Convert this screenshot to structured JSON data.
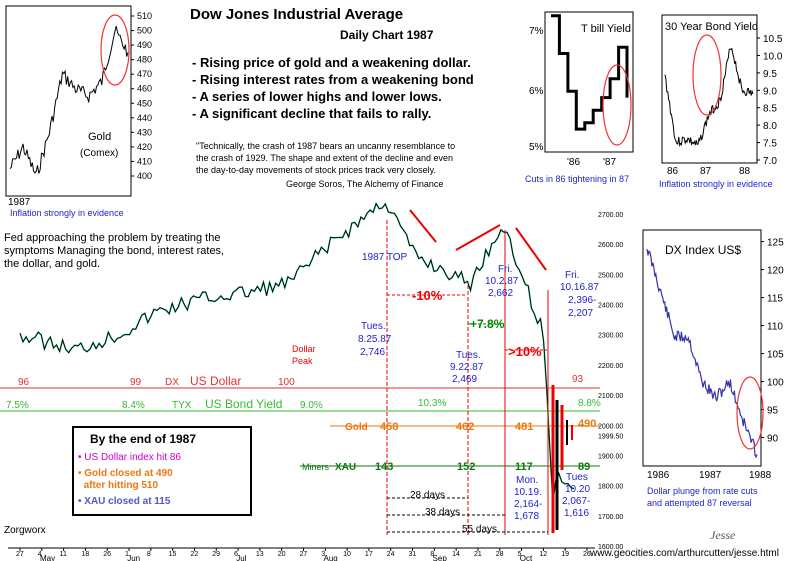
{
  "title": "Dow Jones Industrial Average",
  "subtitle": "Daily Chart  1987",
  "bullets": [
    "- Rising price of gold and a weakening dollar.",
    "- Rising interest rates from a weakening bond",
    "- A series of lower highs and lower lows.",
    "- A significant decline that fails to rally."
  ],
  "quote": [
    "\"Technically, the crash of 1987 bears an uncanny resemblance to",
    "the crash of 1929. The shape and extent of the decline and even",
    "the day-to-day movements of stock prices track very closely.",
    "George Soros, The Alchemy of Finance"
  ],
  "fed_text": [
    "Fed approaching the problem by treating the",
    "symptoms    Managing the bond, interest rates,",
    "the dollar, and gold."
  ],
  "zorgworx": "Zorgworx",
  "website": "www.geocities.com/arthurcutten/jesse.html",
  "signature": "Jesse",
  "summary_box": {
    "title": "By the end of 1987",
    "items": [
      "US Dollar index hit 86",
      "Gold closed at 490 after hitting 510",
      "XAU closed at 115"
    ],
    "item1a": "Gold closed at 490",
    "item1b": "after hitting 510",
    "colors": [
      "#cc00cc",
      "#ee7711",
      "#5555cc"
    ]
  },
  "overlays": {
    "usd": {
      "label_dx": "DX",
      "label": "US Dollar",
      "values": [
        "96",
        "99",
        "100",
        "93"
      ],
      "color": "#dd3333"
    },
    "bond": {
      "label_tyx": "TYX",
      "label": "US Bond Yield",
      "values": [
        "7.5%",
        "8.4%",
        "9.0%",
        "10.3%",
        "8.8%"
      ],
      "color": "#33bb33"
    },
    "gold": {
      "label": "Gold",
      "values": [
        "458",
        "462",
        "481",
        "490"
      ],
      "color": "#ee7711"
    },
    "xau": {
      "label_miners": "Miners",
      "label": "XAU",
      "values": [
        "143",
        "152",
        "117",
        "89"
      ],
      "color": "#117711"
    }
  },
  "annotations": {
    "top_label": "1987 TOP",
    "dollar_peak": [
      "Dollar",
      "Peak"
    ],
    "pct1": "-10%",
    "pct2": "+7.8%",
    "pct3": ">10%",
    "tues1": [
      "Tues.",
      "8.25.87",
      "2,746"
    ],
    "tues2": [
      "Tues.",
      "9.22.87",
      "2,469"
    ],
    "fri1": [
      "Fri.",
      "10.2.87",
      "2,662"
    ],
    "fri2": [
      "Fri.",
      "10.16.87",
      "2,396-",
      "2,207"
    ],
    "mon": [
      "Mon.",
      "10.19.",
      "2,164-",
      "1,678"
    ],
    "tues3": [
      "Tues",
      "10.20",
      "2,067-",
      "1,616"
    ],
    "days": [
      "28 days",
      "38 days",
      "55 days"
    ]
  },
  "main_chart": {
    "y_ticks": [
      "2700.00",
      "2600.00",
      "2500.00",
      "2400.00",
      "2300.00",
      "2200.00",
      "2100.00",
      "2000.00",
      "1999.50",
      "1900.00",
      "1800.00",
      "1700.00",
      "1600.00"
    ],
    "x_days": [
      "27",
      "4",
      "11",
      "18",
      "26",
      "1",
      "8",
      "15",
      "22",
      "29",
      "6",
      "13",
      "20",
      "27",
      "3",
      "10",
      "17",
      "24",
      "31",
      "8",
      "14",
      "21",
      "28",
      "5",
      "12",
      "19",
      "26"
    ],
    "x_months": [
      "May",
      "Jun",
      "Jul",
      "Aug",
      "Sep",
      "Oct"
    ]
  },
  "chart_data": [
    {
      "type": "line",
      "title": "Dow Jones Industrial Average",
      "subtitle": "Daily Chart 1987",
      "x": [
        "1987-04-27",
        "1987-05-15",
        "1987-05-29",
        "1987-06-12",
        "1987-06-26",
        "1987-07-10",
        "1987-07-24",
        "1987-08-07",
        "1987-08-25",
        "1987-09-04",
        "1987-09-22",
        "1987-10-02",
        "1987-10-09",
        "1987-10-16",
        "1987-10-19",
        "1987-10-20",
        "1987-10-26"
      ],
      "series": [
        {
          "values": [
            2300,
            2250,
            2300,
            2380,
            2420,
            2440,
            2470,
            2600,
            2746,
            2560,
            2469,
            2662,
            2500,
            2300,
            1738,
            1840,
            1790
          ]
        }
      ],
      "ylim": [
        1600,
        2700
      ]
    },
    {
      "type": "line",
      "title": "Gold",
      "annotations": [
        "(Comex)",
        "1987",
        "Inflation strongly in evidence"
      ],
      "x": [
        "1986-07",
        "1986-09",
        "1986-11",
        "1987-01",
        "1987-03",
        "1987-05",
        "1987-07",
        "1987-09",
        "1987-11",
        "1987-12"
      ],
      "series": [
        {
          "values": [
            405,
            420,
            400,
            430,
            470,
            460,
            455,
            465,
            500,
            485
          ]
        }
      ],
      "ylim": [
        400,
        510
      ],
      "y_ticks": [
        400,
        410,
        420,
        430,
        440,
        450,
        460,
        470,
        480,
        490,
        500,
        510
      ]
    },
    {
      "type": "line",
      "title": "T bill Yield",
      "annotations": [
        "Cuts in 86 tightening in 87"
      ],
      "x_ticks": [
        "'86",
        "'87"
      ],
      "y_ticks": [
        "7%",
        "6%",
        "5%"
      ],
      "x": [
        "1986-01",
        "1986-04",
        "1986-07",
        "1986-10",
        "1987-01",
        "1987-04",
        "1987-07",
        "1987-09",
        "1987-10",
        "1987-12"
      ],
      "series": [
        {
          "values": [
            7.1,
            6.5,
            5.9,
            5.3,
            5.4,
            5.6,
            5.8,
            6.1,
            6.6,
            5.8
          ]
        }
      ],
      "ylim": [
        5,
        7
      ]
    },
    {
      "type": "line",
      "title": "30 Year Bond Yield",
      "annotations": [
        "Inflation strongly in evidence"
      ],
      "x_ticks": [
        "86",
        "87",
        "88"
      ],
      "y_ticks": [
        7.0,
        7.5,
        8.0,
        8.5,
        9.0,
        9.5,
        10.0,
        10.5
      ],
      "x": [
        "1986-01",
        "1986-05",
        "1986-09",
        "1987-01",
        "1987-04",
        "1987-07",
        "1987-10",
        "1987-11",
        "1988-01"
      ],
      "series": [
        {
          "values": [
            9.4,
            7.5,
            7.6,
            7.4,
            8.3,
            8.7,
            10.3,
            9.0,
            8.9
          ]
        }
      ],
      "ylim": [
        7.0,
        10.5
      ]
    },
    {
      "type": "line",
      "title": "DX Index US$",
      "annotations": [
        "Dollar plunge from rate cuts",
        "and attempted 87 reversal"
      ],
      "x_ticks": [
        "1986",
        "1987",
        "1988"
      ],
      "y_ticks": [
        90,
        95,
        100,
        105,
        110,
        115,
        120,
        125
      ],
      "x": [
        "1986-01",
        "1986-04",
        "1986-07",
        "1986-10",
        "1987-01",
        "1987-04",
        "1987-07",
        "1987-10",
        "1987-12"
      ],
      "series": [
        {
          "values": [
            124,
            116,
            108,
            108,
            100,
            97,
            100,
            93,
            87
          ]
        }
      ],
      "ylim": [
        86,
        126
      ]
    }
  ]
}
